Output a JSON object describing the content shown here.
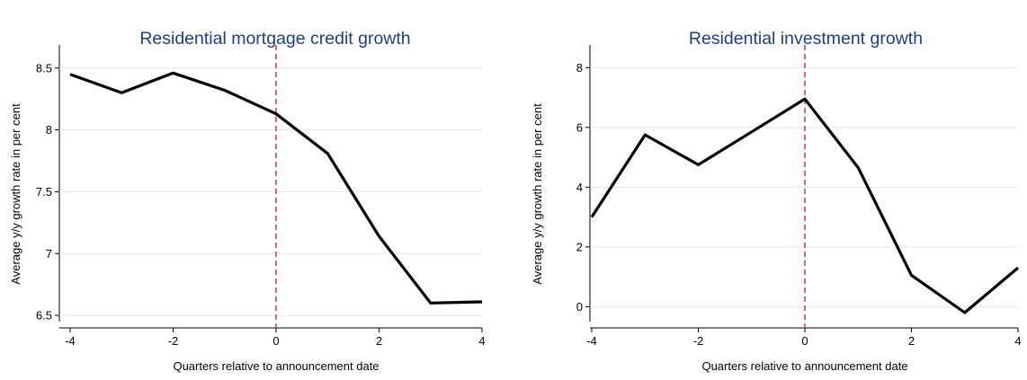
{
  "chart_data": [
    {
      "type": "line",
      "title": "Residential mortgage credit growth",
      "xlabel": "Quarters relative to announcement date",
      "ylabel": "Average y/y growth rate in per cent",
      "xlim": [
        -4,
        4
      ],
      "ylim": [
        6.45,
        8.6
      ],
      "xticks": [
        -4,
        -2,
        0,
        2,
        4
      ],
      "yticks": [
        6.5,
        7,
        7.5,
        8,
        8.5
      ],
      "ytick_labels": [
        "6.5",
        "7",
        "7.5",
        "8",
        "8.5"
      ],
      "grid": true,
      "reference_line_x": 0,
      "series": [
        {
          "x": [
            -4,
            -3,
            -2,
            -1,
            0,
            1,
            2,
            3,
            4
          ],
          "values": [
            8.45,
            8.3,
            8.46,
            8.32,
            8.13,
            7.81,
            7.14,
            6.6,
            6.61
          ]
        }
      ]
    },
    {
      "type": "line",
      "title": "Residential investment growth",
      "xlabel": "Quarters relative to announcement date",
      "ylabel": "Average y/y growth rate in per cent",
      "xlim": [
        -4,
        4
      ],
      "ylim": [
        -0.5,
        8.4
      ],
      "xticks": [
        -4,
        -2,
        0,
        2,
        4
      ],
      "yticks": [
        0,
        2,
        4,
        6,
        8
      ],
      "ytick_labels": [
        "0",
        "2",
        "4",
        "6",
        "8"
      ],
      "grid": true,
      "reference_line_x": 0,
      "series": [
        {
          "x": [
            -4,
            -3,
            -2,
            -1,
            0,
            1,
            2,
            3,
            4
          ],
          "values": [
            3.0,
            5.75,
            4.75,
            5.85,
            6.95,
            4.65,
            1.05,
            -0.2,
            1.3
          ]
        }
      ]
    }
  ],
  "colors": {
    "line": "#000000",
    "reference_line": "#c0395a",
    "grid": "#e6e6e6",
    "title": "#1f3f7a"
  }
}
